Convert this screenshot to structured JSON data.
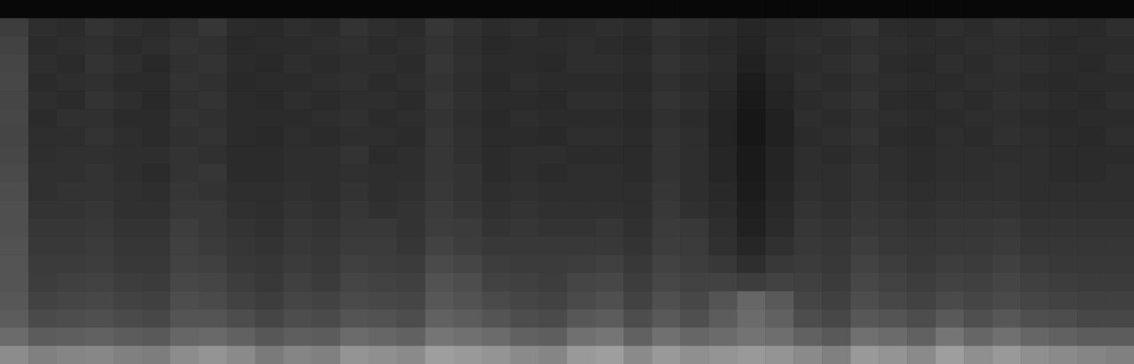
{
  "chart_data": {
    "type": "heatmap",
    "tick_labels": false,
    "zlim": [
      0,
      100
    ],
    "values": [
      [
        3,
        3,
        3,
        3,
        3,
        3,
        3,
        3,
        3,
        3,
        3,
        3,
        3,
        3,
        3,
        3,
        3,
        3,
        3,
        3,
        3,
        3,
        3,
        3,
        3,
        3,
        3,
        3,
        3,
        3,
        3,
        3,
        3,
        3,
        3,
        3,
        3,
        3,
        3,
        3
      ],
      [
        24,
        18,
        17,
        20,
        18,
        17,
        19,
        21,
        17,
        16,
        18,
        17,
        20,
        18,
        17,
        21,
        19,
        17,
        18,
        16,
        17,
        18,
        17,
        20,
        18,
        17,
        15,
        16,
        17,
        18,
        20,
        17,
        16,
        18,
        17,
        19,
        18,
        17,
        16,
        18
      ],
      [
        26,
        17,
        18,
        19,
        17,
        18,
        20,
        19,
        16,
        17,
        17,
        18,
        19,
        17,
        18,
        20,
        18,
        16,
        17,
        17,
        18,
        17,
        16,
        19,
        17,
        16,
        14,
        17,
        18,
        17,
        19,
        18,
        17,
        17,
        18,
        18,
        17,
        16,
        17,
        17
      ],
      [
        27,
        18,
        17,
        20,
        18,
        16,
        19,
        20,
        17,
        16,
        18,
        17,
        18,
        18,
        17,
        21,
        19,
        17,
        17,
        16,
        18,
        18,
        17,
        20,
        18,
        17,
        13,
        16,
        17,
        18,
        20,
        17,
        16,
        18,
        17,
        19,
        18,
        17,
        16,
        18
      ],
      [
        28,
        17,
        18,
        19,
        17,
        17,
        20,
        19,
        16,
        17,
        17,
        18,
        19,
        17,
        18,
        20,
        18,
        16,
        18,
        17,
        17,
        17,
        16,
        19,
        17,
        16,
        11,
        15,
        18,
        17,
        19,
        18,
        17,
        17,
        18,
        18,
        17,
        16,
        17,
        17
      ],
      [
        27,
        18,
        17,
        20,
        18,
        16,
        19,
        20,
        17,
        16,
        18,
        17,
        18,
        18,
        17,
        21,
        19,
        17,
        17,
        16,
        18,
        18,
        17,
        20,
        18,
        15,
        10,
        14,
        17,
        18,
        20,
        17,
        16,
        18,
        17,
        19,
        18,
        17,
        16,
        18
      ],
      [
        28,
        17,
        19,
        19,
        17,
        17,
        20,
        19,
        17,
        17,
        17,
        18,
        19,
        17,
        18,
        20,
        18,
        16,
        18,
        17,
        17,
        17,
        16,
        19,
        17,
        14,
        9,
        13,
        18,
        17,
        19,
        18,
        17,
        17,
        18,
        18,
        17,
        16,
        17,
        17
      ],
      [
        27,
        18,
        18,
        20,
        18,
        17,
        19,
        20,
        17,
        16,
        18,
        17,
        18,
        18,
        17,
        21,
        19,
        17,
        17,
        16,
        18,
        18,
        17,
        20,
        18,
        14,
        9,
        13,
        17,
        18,
        20,
        17,
        16,
        18,
        17,
        19,
        18,
        17,
        16,
        18
      ],
      [
        28,
        18,
        19,
        19,
        18,
        18,
        20,
        19,
        17,
        17,
        18,
        18,
        20,
        17,
        18,
        21,
        19,
        17,
        18,
        18,
        17,
        17,
        17,
        20,
        18,
        15,
        10,
        14,
        18,
        17,
        19,
        18,
        17,
        18,
        18,
        18,
        18,
        17,
        17,
        17
      ],
      [
        29,
        19,
        19,
        20,
        18,
        17,
        20,
        21,
        17,
        17,
        18,
        18,
        19,
        18,
        18,
        21,
        20,
        17,
        18,
        17,
        18,
        18,
        17,
        20,
        18,
        15,
        10,
        14,
        18,
        18,
        20,
        18,
        17,
        18,
        18,
        19,
        18,
        17,
        17,
        18
      ],
      [
        30,
        19,
        20,
        20,
        19,
        18,
        21,
        20,
        18,
        18,
        19,
        18,
        20,
        18,
        19,
        22,
        20,
        18,
        19,
        18,
        18,
        18,
        18,
        21,
        18,
        16,
        11,
        15,
        19,
        18,
        20,
        19,
        18,
        19,
        19,
        19,
        18,
        18,
        18,
        18
      ],
      [
        31,
        20,
        20,
        21,
        19,
        19,
        22,
        22,
        19,
        18,
        20,
        19,
        21,
        19,
        20,
        23,
        21,
        19,
        20,
        19,
        19,
        19,
        18,
        22,
        19,
        17,
        12,
        16,
        20,
        19,
        21,
        20,
        19,
        20,
        20,
        20,
        19,
        19,
        19,
        19
      ],
      [
        31,
        21,
        21,
        22,
        20,
        20,
        24,
        22,
        20,
        19,
        21,
        20,
        22,
        22,
        20,
        24,
        23,
        20,
        21,
        20,
        20,
        21,
        19,
        23,
        22,
        18,
        13,
        17,
        21,
        20,
        22,
        21,
        20,
        21,
        21,
        22,
        20,
        20,
        20,
        20
      ],
      [
        32,
        22,
        22,
        23,
        21,
        21,
        25,
        23,
        21,
        20,
        22,
        21,
        23,
        23,
        21,
        26,
        24,
        22,
        22,
        22,
        22,
        22,
        20,
        24,
        23,
        19,
        15,
        19,
        22,
        21,
        24,
        22,
        21,
        22,
        22,
        23,
        21,
        21,
        21,
        21
      ],
      [
        33,
        23,
        23,
        24,
        22,
        22,
        26,
        25,
        22,
        21,
        23,
        22,
        25,
        24,
        23,
        29,
        27,
        24,
        23,
        23,
        24,
        25,
        22,
        26,
        24,
        22,
        18,
        22,
        23,
        22,
        26,
        24,
        22,
        24,
        23,
        25,
        23,
        22,
        22,
        22
      ],
      [
        33,
        24,
        25,
        26,
        24,
        23,
        28,
        27,
        24,
        22,
        25,
        23,
        27,
        26,
        25,
        32,
        30,
        26,
        25,
        24,
        27,
        28,
        24,
        28,
        26,
        26,
        24,
        26,
        25,
        23,
        28,
        26,
        24,
        26,
        25,
        27,
        25,
        24,
        23,
        23
      ],
      [
        34,
        26,
        27,
        28,
        26,
        25,
        30,
        29,
        26,
        24,
        27,
        26,
        29,
        28,
        27,
        34,
        32,
        29,
        27,
        26,
        29,
        31,
        26,
        31,
        28,
        33,
        40,
        35,
        27,
        25,
        30,
        28,
        26,
        29,
        27,
        29,
        27,
        26,
        25,
        25
      ],
      [
        36,
        29,
        30,
        31,
        29,
        28,
        33,
        33,
        30,
        27,
        30,
        29,
        33,
        32,
        30,
        38,
        36,
        33,
        30,
        29,
        34,
        36,
        30,
        35,
        31,
        36,
        42,
        38,
        30,
        28,
        34,
        33,
        30,
        35,
        31,
        34,
        31,
        30,
        28,
        28
      ],
      [
        42,
        36,
        37,
        38,
        36,
        35,
        40,
        41,
        38,
        34,
        37,
        36,
        42,
        40,
        38,
        46,
        44,
        42,
        38,
        37,
        44,
        46,
        38,
        44,
        40,
        42,
        45,
        43,
        38,
        35,
        44,
        42,
        38,
        46,
        40,
        44,
        40,
        38,
        36,
        36
      ],
      [
        55,
        50,
        52,
        53,
        50,
        49,
        55,
        58,
        54,
        48,
        52,
        50,
        58,
        56,
        54,
        62,
        60,
        58,
        54,
        52,
        60,
        62,
        54,
        60,
        56,
        58,
        60,
        58,
        54,
        50,
        60,
        58,
        54,
        62,
        56,
        60,
        56,
        54,
        52,
        50
      ]
    ]
  }
}
